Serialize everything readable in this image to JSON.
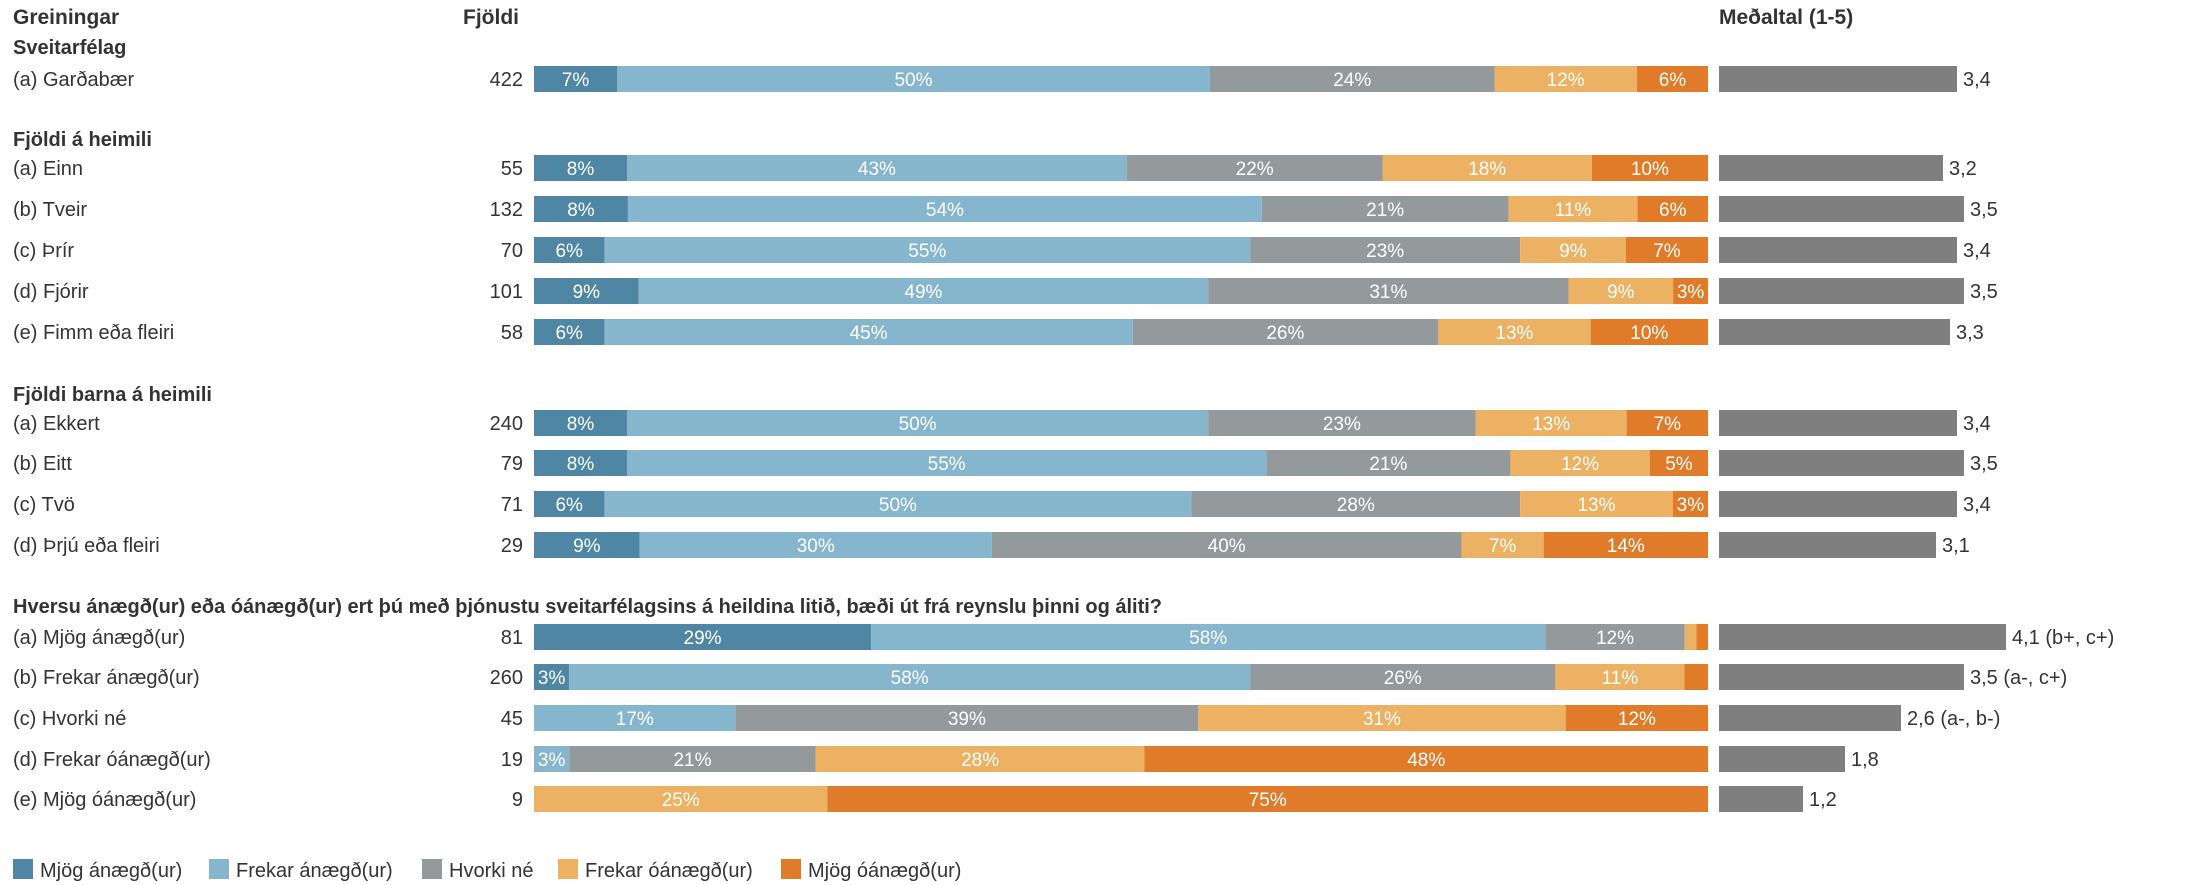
{
  "headers": {
    "groups": "Greiningar",
    "count": "Fjöldi",
    "mean": "Meðaltal (1-5)"
  },
  "colors": {
    "mjog_anaegd": "#4e86a4",
    "frekar_anaegd": "#86b6ce",
    "hvorki_ne": "#949a9c",
    "frekar_oanaegd": "#ecb162",
    "mjog_oanaegd": "#e07b2a",
    "mean_bar": "#7f7f7f"
  },
  "chart_data": {
    "type": "bar",
    "stacked": true,
    "orientation": "horizontal",
    "series": [
      {
        "name": "Mjög ánægð(ur)",
        "color": "#4e86a4"
      },
      {
        "name": "Frekar ánægð(ur)",
        "color": "#86b6ce"
      },
      {
        "name": "Hvorki né",
        "color": "#949a9c"
      },
      {
        "name": "Frekar óánægð(ur)",
        "color": "#ecb162"
      },
      {
        "name": "Mjög óánægð(ur)",
        "color": "#e07b2a"
      }
    ],
    "mean_scale": [
      1,
      5
    ],
    "legend_position": "bottom-left",
    "sections": [
      {
        "title": "Sveitarfélag",
        "rows": [
          {
            "label": "(a) Garðabær",
            "n": "422",
            "pct": [
              7,
              50,
              24,
              12,
              6
            ],
            "mean": 3.4,
            "mean_label": "3,4"
          }
        ]
      },
      {
        "title": "Fjöldi á heimili",
        "rows": [
          {
            "label": "(a) Einn",
            "n": "55",
            "pct": [
              8,
              43,
              22,
              18,
              10
            ],
            "mean": 3.2,
            "mean_label": "3,2"
          },
          {
            "label": "(b) Tveir",
            "n": "132",
            "pct": [
              8,
              54,
              21,
              11,
              6
            ],
            "mean": 3.5,
            "mean_label": "3,5"
          },
          {
            "label": "(c) Þrír",
            "n": "70",
            "pct": [
              6,
              55,
              23,
              9,
              7
            ],
            "mean": 3.4,
            "mean_label": "3,4"
          },
          {
            "label": "(d) Fjórir",
            "n": "101",
            "pct": [
              9,
              49,
              31,
              9,
              3
            ],
            "mean": 3.5,
            "mean_label": "3,5"
          },
          {
            "label": "(e) Fimm eða fleiri",
            "n": "58",
            "pct": [
              6,
              45,
              26,
              13,
              10
            ],
            "mean": 3.3,
            "mean_label": "3,3"
          }
        ]
      },
      {
        "title": "Fjöldi barna á heimili",
        "rows": [
          {
            "label": "(a) Ekkert",
            "n": "240",
            "pct": [
              8,
              50,
              23,
              13,
              7
            ],
            "mean": 3.4,
            "mean_label": "3,4"
          },
          {
            "label": "(b) Eitt",
            "n": "79",
            "pct": [
              8,
              55,
              21,
              12,
              5
            ],
            "mean": 3.5,
            "mean_label": "3,5"
          },
          {
            "label": "(c) Tvö",
            "n": "71",
            "pct": [
              6,
              50,
              28,
              13,
              3
            ],
            "mean": 3.4,
            "mean_label": "3,4"
          },
          {
            "label": "(d) Þrjú eða fleiri",
            "n": "29",
            "pct": [
              9,
              30,
              40,
              7,
              14
            ],
            "mean": 3.1,
            "mean_label": "3,1"
          }
        ]
      },
      {
        "title": "Hversu ánægð(ur) eða óánægð(ur) ert þú með þjónustu sveitarfélagsins á heildina litið, bæði út frá reynslu þinni og áliti?",
        "rows": [
          {
            "label": "(a) Mjög ánægð(ur)",
            "n": "81",
            "pct": [
              29,
              58,
              12,
              1,
              1
            ],
            "mean": 4.1,
            "mean_label": "4,1 (b+, c+)"
          },
          {
            "label": "(b) Frekar ánægð(ur)",
            "n": "260",
            "pct": [
              3,
              58,
              26,
              11,
              2
            ],
            "mean": 3.5,
            "mean_label": "3,5 (a-, c+)"
          },
          {
            "label": "(c) Hvorki né",
            "n": "45",
            "pct": [
              0,
              17,
              39,
              31,
              12
            ],
            "mean": 2.6,
            "mean_label": "2,6 (a-, b-)"
          },
          {
            "label": "(d) Frekar óánægð(ur)",
            "n": "19",
            "pct": [
              0,
              3,
              21,
              28,
              48
            ],
            "mean": 1.8,
            "mean_label": "1,8"
          },
          {
            "label": "(e) Mjög óánægð(ur)",
            "n": "9",
            "pct": [
              0,
              0,
              0,
              25,
              75
            ],
            "mean": 1.2,
            "mean_label": "1,2"
          }
        ]
      }
    ]
  }
}
